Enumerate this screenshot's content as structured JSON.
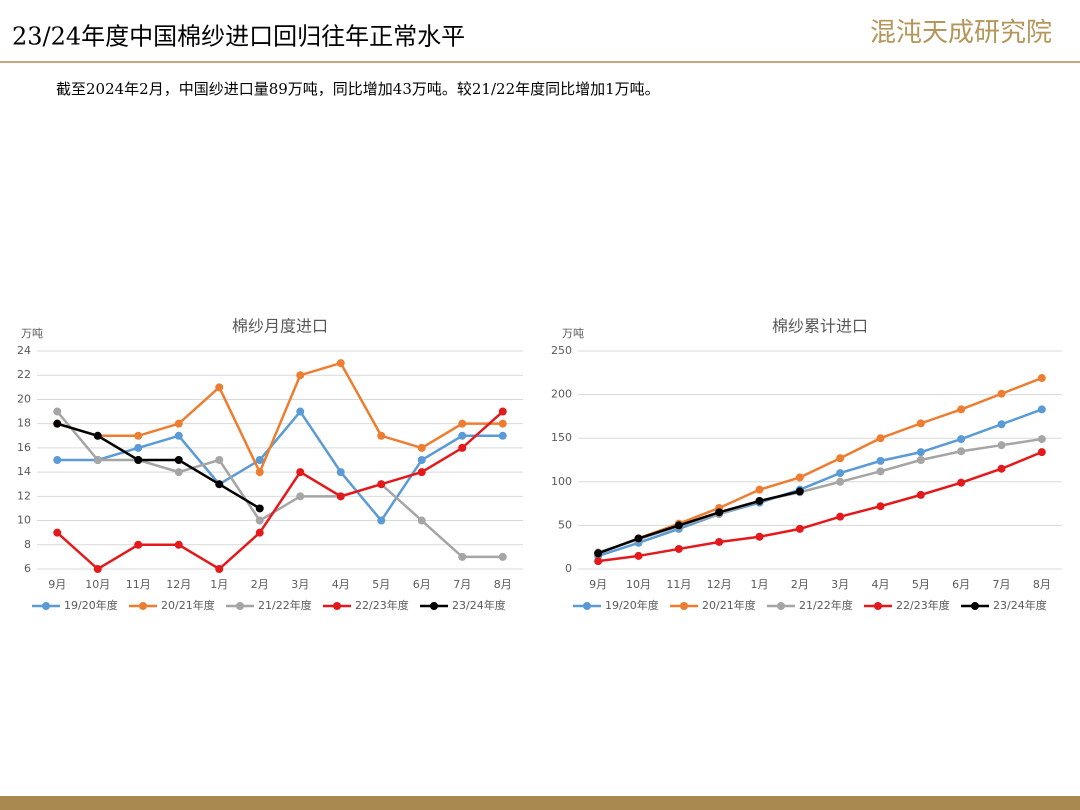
{
  "header": {
    "title": "23/24年度中国棉纱进口回归往年正常水平",
    "logo": "混沌天成研究院"
  },
  "subtitle": "截至2024年2月，中国纱进口量89万吨，同比增加43万吨。较21/22年度同比增加1万吨。",
  "chart_data": [
    {
      "type": "line",
      "title": "棉纱月度进口",
      "y_unit": "万吨",
      "categories": [
        "9月",
        "10月",
        "11月",
        "12月",
        "1月",
        "2月",
        "3月",
        "4月",
        "5月",
        "6月",
        "7月",
        "8月"
      ],
      "ylim": [
        6,
        24
      ],
      "yticks": [
        6,
        8,
        10,
        12,
        14,
        16,
        18,
        20,
        22,
        24
      ],
      "grid": true,
      "series": [
        {
          "name": "19/20年度",
          "color": "#5b9bd5",
          "values": [
            15,
            15,
            16,
            17,
            13,
            15,
            19,
            14,
            10,
            15,
            17,
            17
          ]
        },
        {
          "name": "20/21年度",
          "color": "#ed7d31",
          "values": [
            18,
            17,
            17,
            18,
            21,
            14,
            22,
            23,
            17,
            16,
            18,
            18
          ]
        },
        {
          "name": "21/22年度",
          "color": "#a5a5a5",
          "values": [
            19,
            15,
            15,
            14,
            15,
            10,
            12,
            12,
            13,
            10,
            7,
            7
          ]
        },
        {
          "name": "22/23年度",
          "color": "#e3191c",
          "values": [
            9,
            6,
            8,
            8,
            6,
            9,
            14,
            12,
            13,
            14,
            16,
            19
          ]
        },
        {
          "name": "23/24年度",
          "color": "#000000",
          "values": [
            18,
            17,
            15,
            15,
            13,
            11,
            null,
            null,
            null,
            null,
            null,
            null
          ]
        }
      ]
    },
    {
      "type": "line",
      "title": "棉纱累计进口",
      "y_unit": "万吨",
      "categories": [
        "9月",
        "10月",
        "11月",
        "12月",
        "1月",
        "2月",
        "3月",
        "4月",
        "5月",
        "6月",
        "7月",
        "8月"
      ],
      "ylim": [
        0,
        250
      ],
      "yticks": [
        0,
        50,
        100,
        150,
        200,
        250
      ],
      "grid": true,
      "series": [
        {
          "name": "19/20年度",
          "color": "#5b9bd5",
          "values": [
            15,
            30,
            46,
            63,
            76,
            91,
            110,
            124,
            134,
            149,
            166,
            183
          ]
        },
        {
          "name": "20/21年度",
          "color": "#ed7d31",
          "values": [
            18,
            35,
            52,
            70,
            91,
            105,
            127,
            150,
            167,
            183,
            201,
            219
          ]
        },
        {
          "name": "21/22年度",
          "color": "#a5a5a5",
          "values": [
            19,
            34,
            49,
            63,
            78,
            88,
            100,
            112,
            125,
            135,
            142,
            149
          ]
        },
        {
          "name": "22/23年度",
          "color": "#e3191c",
          "values": [
            9,
            15,
            23,
            31,
            37,
            46,
            60,
            72,
            85,
            99,
            115,
            134
          ]
        },
        {
          "name": "23/24年度",
          "color": "#000000",
          "values": [
            18,
            35,
            50,
            65,
            78,
            89,
            null,
            null,
            null,
            null,
            null,
            null
          ]
        }
      ]
    }
  ]
}
